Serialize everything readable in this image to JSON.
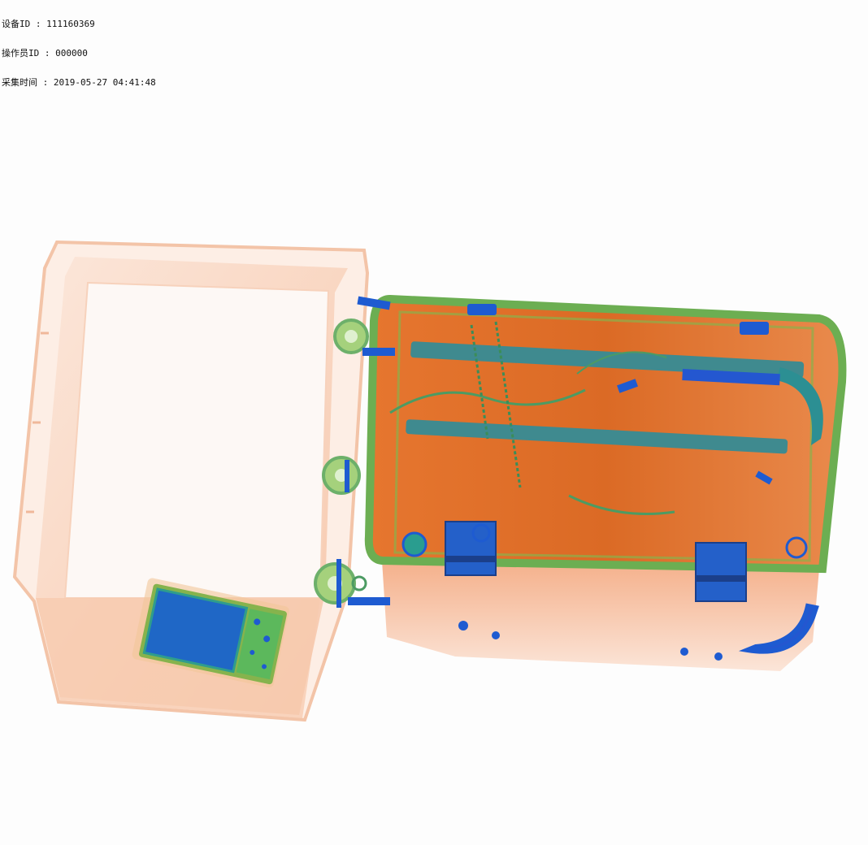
{
  "header": {
    "device_line": "设备ID : 111160369",
    "operator_line": "操作员ID : 000000",
    "time_line": "采集时间 : 2019-05-27 04:41:48"
  },
  "palette": {
    "organic": "#e8733a",
    "organic_light": "#f6c4a6",
    "mixed": "#6db06a",
    "metal": "#1e5bd1",
    "background": "#fdfdfd"
  }
}
